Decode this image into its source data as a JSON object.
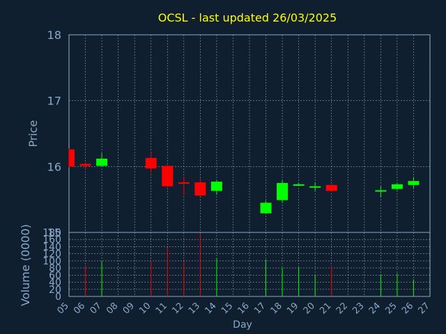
{
  "chart_data": [
    {
      "type": "candlestick",
      "title": "OCSL - last updated 26/03/2025",
      "ylabel": "Price",
      "ylim": [
        15,
        18
      ],
      "yticks": [
        "15",
        "16",
        "17",
        "18"
      ],
      "grid": true,
      "x": [
        "05",
        "06",
        "07",
        "10",
        "11",
        "12",
        "13",
        "14",
        "17",
        "18",
        "19",
        "20",
        "21",
        "24",
        "25",
        "26"
      ],
      "open": [
        16.26,
        16.04,
        16.01,
        16.13,
        16.01,
        15.76,
        15.76,
        15.63,
        15.29,
        15.49,
        15.73,
        15.68,
        15.72,
        15.62,
        15.66,
        15.72
      ],
      "close": [
        16.0,
        16.01,
        16.12,
        15.97,
        15.7,
        15.74,
        15.56,
        15.77,
        15.45,
        15.75,
        15.73,
        15.7,
        15.63,
        15.64,
        15.73,
        15.78
      ],
      "high": [
        16.27,
        16.06,
        16.2,
        16.22,
        16.03,
        15.85,
        15.82,
        15.79,
        15.48,
        15.79,
        15.75,
        15.76,
        15.73,
        15.7,
        15.75,
        15.84
      ],
      "low": [
        15.99,
        15.96,
        16.0,
        15.9,
        15.69,
        15.56,
        15.55,
        15.57,
        15.28,
        15.45,
        15.71,
        15.63,
        15.61,
        15.53,
        15.64,
        15.67
      ]
    },
    {
      "type": "bar",
      "ylabel": "Volume (0000)",
      "xlabel": "Day",
      "ylim": [
        0,
        180
      ],
      "yticks": [
        "0",
        "20",
        "40",
        "60",
        "80",
        "100",
        "120",
        "140",
        "160",
        "180"
      ],
      "categories": [
        "05",
        "06",
        "07",
        "08",
        "09",
        "10",
        "11",
        "12",
        "13",
        "14",
        "15",
        "16",
        "17",
        "18",
        "19",
        "20",
        "21",
        "22",
        "23",
        "24",
        "25",
        "26",
        "27"
      ],
      "x": [
        "05",
        "06",
        "07",
        "10",
        "11",
        "12",
        "13",
        "14",
        "17",
        "18",
        "19",
        "20",
        "21",
        "24",
        "25",
        "26"
      ],
      "values": [
        0,
        88,
        98,
        100,
        137,
        97,
        176,
        107,
        104,
        80,
        82,
        60,
        85,
        62,
        65,
        48
      ],
      "direction": [
        "down",
        "down",
        "up",
        "down",
        "down",
        "down",
        "down",
        "up",
        "up",
        "up",
        "up",
        "up",
        "down",
        "up",
        "up",
        "up"
      ]
    }
  ],
  "colors": {
    "background": "#0f1f30",
    "text": "#8aa9c8",
    "title": "#ffff00",
    "up": "#00ff00",
    "down": "#ff0000",
    "grid": "#c8c8c8"
  }
}
